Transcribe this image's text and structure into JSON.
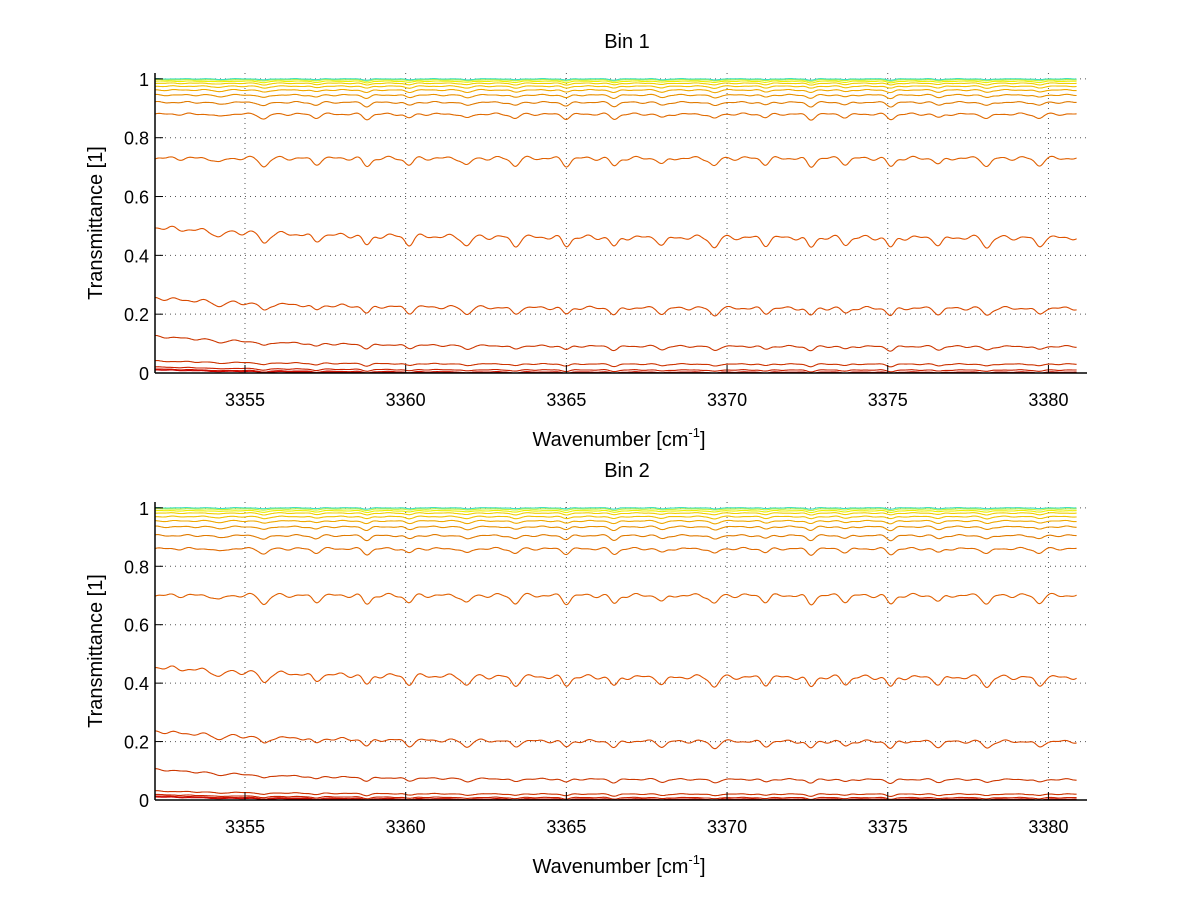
{
  "chart_data": [
    {
      "type": "line",
      "title": "Bin 1",
      "xlabel": "Wavenumber [cm",
      "xlabel_sup": "-1",
      "xlabel_end": "]",
      "ylabel": "Transmittance [1]",
      "xlim": [
        3352.2,
        3381.2
      ],
      "ylim": [
        0,
        1.02
      ],
      "xticks": [
        3355,
        3360,
        3365,
        3370,
        3375,
        3380
      ],
      "yticks": [
        0,
        0.2,
        0.4,
        0.6,
        0.8,
        1
      ],
      "grid": true,
      "series_levels": [
        0.0,
        0.003,
        0.01,
        0.03,
        0.09,
        0.22,
        0.46,
        0.73,
        0.88,
        0.92,
        0.945,
        0.962,
        0.975,
        0.985,
        0.992,
        0.997,
        1.0
      ],
      "series_colors": [
        "#cc0000",
        "#cc1100",
        "#cc2200",
        "#cc3300",
        "#cc3800",
        "#d94a00",
        "#e05400",
        "#e06000",
        "#e06a00",
        "#e07a00",
        "#e89000",
        "#eea800",
        "#f0c000",
        "#f0d000",
        "#eeee00",
        "#c8f040",
        "#40e0c0"
      ],
      "absorption_lines": [
        3354.2,
        3355.6,
        3357.2,
        3358.8,
        3360.1,
        3361.9,
        3363.4,
        3365.0,
        3366.5,
        3368.0,
        3369.6,
        3371.2,
        3372.6,
        3373.7,
        3375.1,
        3376.6,
        3378.1,
        3379.7
      ]
    },
    {
      "type": "line",
      "title": "Bin 2",
      "xlabel": "Wavenumber [cm",
      "xlabel_sup": "-1",
      "xlabel_end": "]",
      "ylabel": "Transmittance [1]",
      "xlim": [
        3352.2,
        3381.2
      ],
      "ylim": [
        0,
        1.02
      ],
      "xticks": [
        3355,
        3360,
        3365,
        3370,
        3375,
        3380
      ],
      "yticks": [
        0,
        0.2,
        0.4,
        0.6,
        0.8,
        1
      ],
      "grid": true,
      "series_levels": [
        0.0,
        0.003,
        0.008,
        0.02,
        0.07,
        0.2,
        0.42,
        0.7,
        0.86,
        0.905,
        0.935,
        0.955,
        0.97,
        0.982,
        0.99,
        0.996,
        1.0
      ],
      "series_colors": [
        "#cc0000",
        "#cc1100",
        "#cc2200",
        "#cc3300",
        "#cc3800",
        "#d94a00",
        "#e05400",
        "#e06000",
        "#e06a00",
        "#e07a00",
        "#e89000",
        "#eea800",
        "#f0c000",
        "#f0d000",
        "#eeee00",
        "#c8f040",
        "#40e0c0"
      ],
      "absorption_lines": [
        3354.2,
        3355.6,
        3357.2,
        3358.8,
        3360.1,
        3361.9,
        3363.4,
        3365.0,
        3366.5,
        3368.0,
        3369.6,
        3371.2,
        3372.6,
        3373.7,
        3375.1,
        3376.6,
        3378.1,
        3379.7
      ]
    }
  ]
}
